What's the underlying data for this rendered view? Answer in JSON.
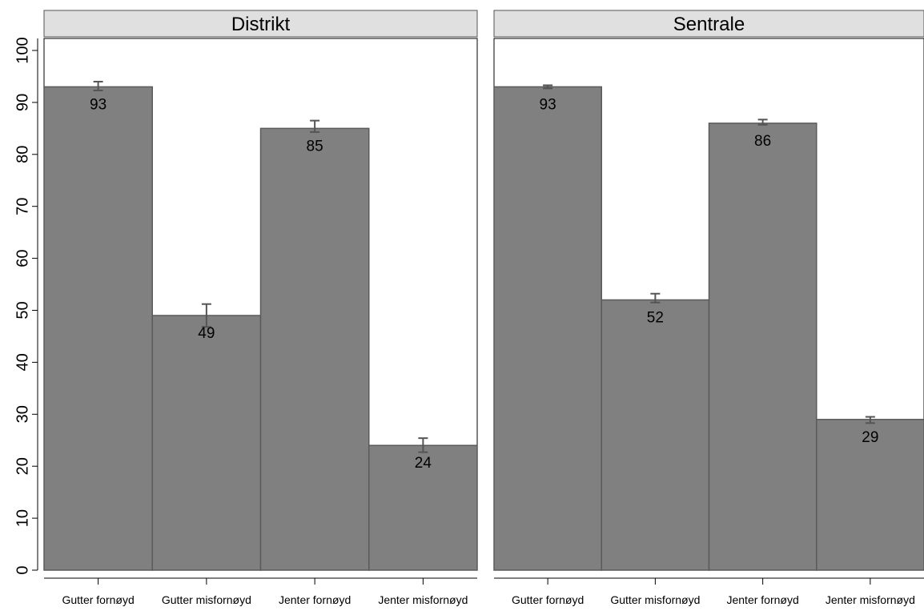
{
  "chart_data": {
    "type": "bar",
    "ylim": [
      0,
      100
    ],
    "yticks": [
      "0",
      "10",
      "20",
      "30",
      "40",
      "50",
      "60",
      "70",
      "80",
      "90",
      "100"
    ],
    "categories": [
      "Gutter fornøyd",
      "Gutter misfornøyd",
      "Jenter fornøyd",
      "Jenter misfornøyd"
    ],
    "bar_color": "#808080",
    "error_color": "#555555",
    "grid": false,
    "panels": [
      {
        "title": "Distrikt",
        "values": [
          93,
          49,
          85,
          24
        ],
        "value_labels": [
          "93",
          "49",
          "85",
          "24"
        ],
        "errors": [
          [
            92.3,
            94.0
          ],
          [
            46.8,
            51.2
          ],
          [
            84.3,
            86.5
          ],
          [
            22.7,
            25.4
          ]
        ]
      },
      {
        "title": "Sentrale",
        "values": [
          93,
          52,
          86,
          29
        ],
        "value_labels": [
          "93",
          "52",
          "86",
          "29"
        ],
        "errors": [
          [
            92.7,
            93.3
          ],
          [
            51.5,
            53.2
          ],
          [
            85.7,
            86.7
          ],
          [
            28.3,
            29.5
          ]
        ]
      }
    ]
  }
}
